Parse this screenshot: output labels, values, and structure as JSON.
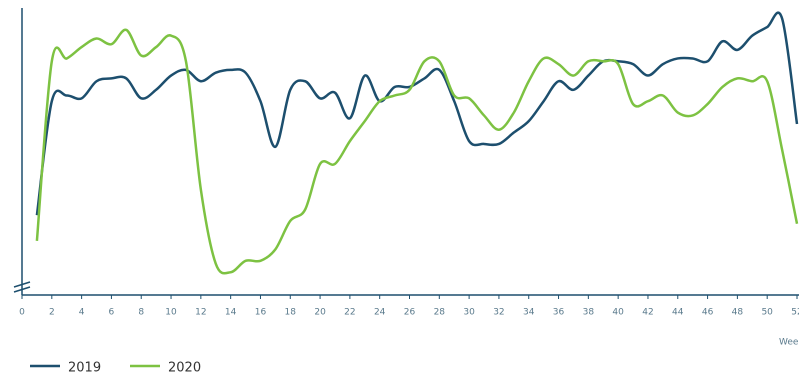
{
  "chart_data": {
    "type": "line",
    "x": [
      1,
      2,
      3,
      4,
      5,
      6,
      7,
      8,
      9,
      10,
      11,
      12,
      13,
      14,
      15,
      16,
      17,
      18,
      19,
      20,
      21,
      22,
      23,
      24,
      25,
      26,
      27,
      28,
      29,
      30,
      31,
      32,
      33,
      34,
      35,
      36,
      37,
      38,
      39,
      40,
      41,
      42,
      43,
      44,
      45,
      46,
      47,
      48,
      49,
      50,
      51,
      52
    ],
    "xlim": [
      0,
      52
    ],
    "xticks": [
      0,
      2,
      4,
      6,
      8,
      10,
      12,
      14,
      16,
      18,
      20,
      22,
      24,
      26,
      28,
      30,
      32,
      34,
      36,
      38,
      40,
      42,
      44,
      46,
      48,
      50,
      52
    ],
    "xlabel": "Week",
    "ylim": [
      0,
      100
    ],
    "series": [
      {
        "name": "2019",
        "color": "#1d4f6e",
        "values": [
          28,
          68,
          70,
          69,
          75,
          76,
          76,
          69,
          72,
          77,
          79,
          75,
          78,
          79,
          78,
          68,
          52,
          72,
          75,
          69,
          71,
          62,
          77,
          68,
          73,
          73,
          76,
          79,
          68,
          54,
          53,
          53,
          57,
          61,
          68,
          75,
          72,
          77,
          82,
          82,
          81,
          77,
          81,
          83,
          83,
          82,
          89,
          86,
          91,
          94,
          97,
          60
        ]
      },
      {
        "name": "2020",
        "color": "#7dc242",
        "values": [
          19,
          82,
          83,
          87,
          90,
          88,
          93,
          84,
          87,
          91,
          82,
          37,
          11,
          8,
          12,
          12,
          16,
          26,
          30,
          46,
          46,
          54,
          61,
          68,
          70,
          72,
          82,
          82,
          70,
          69,
          63,
          58,
          64,
          75,
          83,
          81,
          77,
          82,
          82,
          81,
          67,
          68,
          70,
          64,
          63,
          67,
          73,
          76,
          75,
          75,
          51,
          25
        ]
      }
    ]
  }
}
